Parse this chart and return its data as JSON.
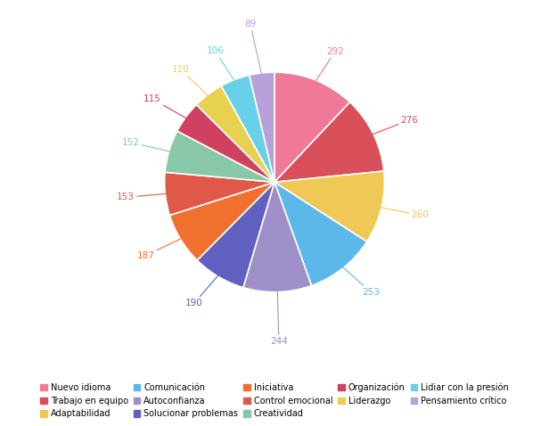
{
  "labels": [
    "Nuevo idioma",
    "Trabajo en equipo",
    "Adaptabilidad",
    "Comunicación",
    "Autoconfianza",
    "Solucionar problemas",
    "Iniciativa",
    "Control emocional",
    "Creatividad",
    "Organización",
    "Liderazgo",
    "Lidiar con la presión",
    "Pensamiento crítico"
  ],
  "values": [
    292,
    276,
    260,
    253,
    244,
    190,
    187,
    153,
    152,
    115,
    110,
    106,
    89
  ],
  "colors": [
    "#f07898",
    "#d94f5a",
    "#f0c855",
    "#5bb8e8",
    "#9e8fc8",
    "#6060c0",
    "#f07030",
    "#e05848",
    "#88c8a8",
    "#d04060",
    "#e8d050",
    "#68d0e8",
    "#b8a0d8"
  ],
  "label_colors": [
    "#f07898",
    "#d94f5a",
    "#f0c855",
    "#5bb8e8",
    "#9e8fc8",
    "#6060c0",
    "#f07030",
    "#e05848",
    "#88c8a8",
    "#d04060",
    "#e8d050",
    "#68d0e8",
    "#b8a0d8"
  ],
  "background": "#ffffff",
  "legend_order": [
    0,
    1,
    2,
    3,
    4,
    5,
    6,
    7,
    8,
    9,
    10,
    11,
    12
  ]
}
